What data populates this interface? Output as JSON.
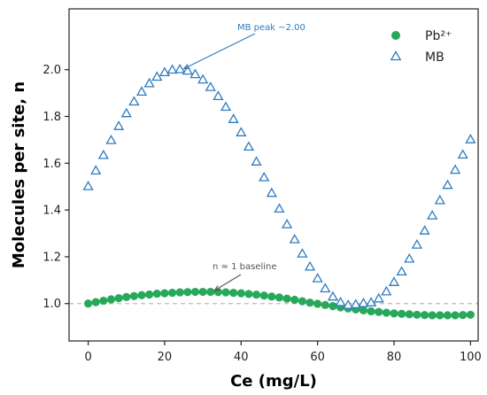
{
  "chart_data": {
    "type": "scatter",
    "xlabel": "Ce (mg/L)",
    "ylabel": "Molecules per site, n",
    "xlim": [
      -5,
      102
    ],
    "ylim": [
      0.84,
      2.26
    ],
    "xticks": [
      0,
      20,
      40,
      60,
      80,
      100
    ],
    "yticks": [
      1.0,
      1.2,
      1.4,
      1.6,
      1.8,
      2.0
    ],
    "xtick_labels": [
      "0",
      "20",
      "40",
      "60",
      "80",
      "100"
    ],
    "ytick_labels": [
      "1.0",
      "1.2",
      "1.4",
      "1.6",
      "1.8",
      "2.0"
    ],
    "grid": false,
    "legend_position": "top-right",
    "reference_line": {
      "y": 1.0,
      "style": "dashed",
      "color": "#bbbbbb"
    },
    "series": [
      {
        "name": "Pb²⁺",
        "marker": "filled-circle",
        "color": "#27a85a",
        "x": [
          0,
          2,
          4,
          6,
          8,
          10,
          12,
          14,
          16,
          18,
          20,
          22,
          24,
          26,
          28,
          30,
          32,
          34,
          36,
          38,
          40,
          42,
          44,
          46,
          48,
          50,
          52,
          54,
          56,
          58,
          60,
          62,
          64,
          66,
          68,
          70,
          72,
          74,
          76,
          78,
          80,
          82,
          84,
          86,
          88,
          90,
          92,
          94,
          96,
          98,
          100
        ],
        "y": [
          1.0,
          1.006,
          1.012,
          1.018,
          1.023,
          1.028,
          1.032,
          1.036,
          1.039,
          1.042,
          1.044,
          1.046,
          1.048,
          1.049,
          1.05,
          1.05,
          1.05,
          1.049,
          1.048,
          1.046,
          1.044,
          1.041,
          1.038,
          1.034,
          1.03,
          1.026,
          1.021,
          1.016,
          1.01,
          1.004,
          0.999,
          0.994,
          0.989,
          0.984,
          0.979,
          0.975,
          0.971,
          0.967,
          0.964,
          0.961,
          0.958,
          0.956,
          0.954,
          0.952,
          0.951,
          0.95,
          0.95,
          0.95,
          0.95,
          0.951,
          0.952
        ]
      },
      {
        "name": "MB",
        "marker": "open-triangle",
        "color": "#2e7bbf",
        "x": [
          0,
          2,
          4,
          6,
          8,
          10,
          12,
          14,
          16,
          18,
          20,
          22,
          24,
          26,
          28,
          30,
          32,
          34,
          36,
          38,
          40,
          42,
          44,
          46,
          48,
          50,
          52,
          54,
          56,
          58,
          60,
          62,
          64,
          66,
          68,
          70,
          72,
          74,
          76,
          78,
          80,
          82,
          84,
          86,
          88,
          90,
          92,
          94,
          96,
          98,
          100
        ],
        "y": [
          1.5,
          1.567,
          1.633,
          1.697,
          1.757,
          1.812,
          1.862,
          1.904,
          1.94,
          1.968,
          1.987,
          1.998,
          2.0,
          1.994,
          1.979,
          1.956,
          1.924,
          1.885,
          1.839,
          1.787,
          1.73,
          1.669,
          1.605,
          1.538,
          1.471,
          1.404,
          1.337,
          1.273,
          1.212,
          1.156,
          1.106,
          1.063,
          1.028,
          1.004,
          0.992,
          0.995,
          1.0,
          1.003,
          1.02,
          1.05,
          1.09,
          1.135,
          1.19,
          1.25,
          1.31,
          1.375,
          1.44,
          1.505,
          1.57,
          1.635,
          1.7
        ]
      }
    ],
    "annotations": [
      {
        "text": "MB peak ~2.00",
        "x": 25,
        "y": 2.0,
        "color": "#2e7bbf"
      },
      {
        "text": "n ≈ 1 baseline",
        "x": 33,
        "y": 1.04,
        "color": "#555555"
      }
    ]
  }
}
